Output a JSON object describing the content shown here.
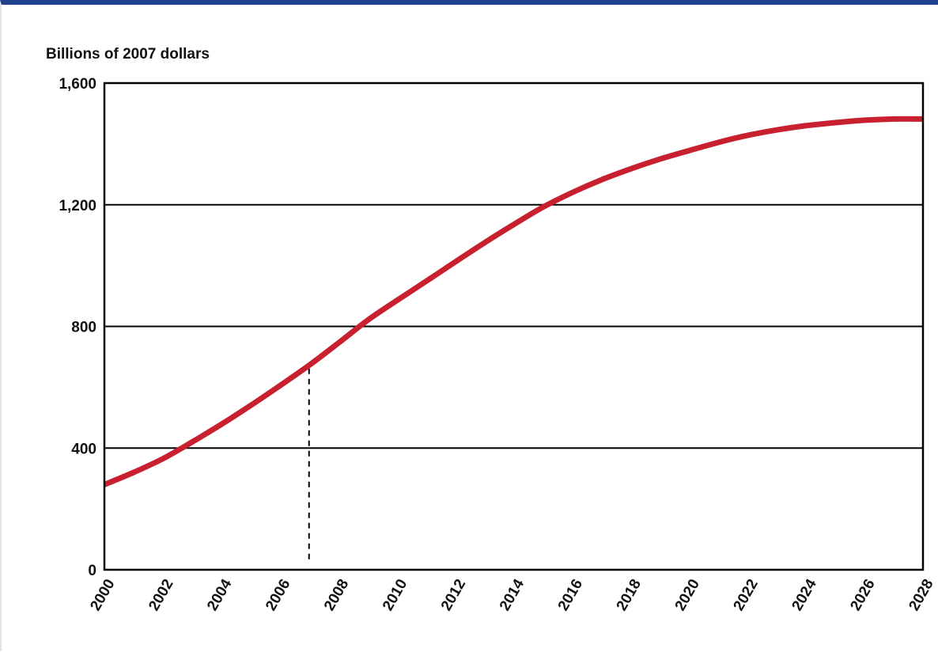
{
  "chart_data": {
    "type": "line",
    "ylabel": "Billions of 2007 dollars",
    "xlabel": "",
    "title": "",
    "xlim": [
      2000,
      2028
    ],
    "ylim": [
      0,
      1600
    ],
    "x_ticks": [
      "2000",
      "2002",
      "2004",
      "2006",
      "2008",
      "2010",
      "2012",
      "2014",
      "2016",
      "2018",
      "2020",
      "2022",
      "2024",
      "2026",
      "2028"
    ],
    "y_ticks": [
      "0",
      "400",
      "800",
      "1,200",
      "1,600"
    ],
    "y_tick_values": [
      0,
      400,
      800,
      1200,
      1600
    ],
    "grid": "horizontal",
    "series": [
      {
        "color": "#c8202f",
        "x": [
          2000,
          2001,
          2002,
          2003,
          2004,
          2005,
          2006,
          2007,
          2008,
          2009,
          2010,
          2011,
          2012,
          2013,
          2014,
          2015,
          2016,
          2017,
          2018,
          2019,
          2020,
          2021,
          2022,
          2023,
          2024,
          2025,
          2026,
          2027,
          2028
        ],
        "values": [
          280,
          320,
          365,
          420,
          478,
          540,
          605,
          672,
          745,
          820,
          885,
          948,
          1012,
          1075,
          1135,
          1192,
          1240,
          1282,
          1318,
          1350,
          1378,
          1405,
          1428,
          1446,
          1460,
          1470,
          1478,
          1482,
          1482
        ]
      }
    ],
    "reference_line": {
      "x": 2007,
      "style": "dashed"
    }
  }
}
